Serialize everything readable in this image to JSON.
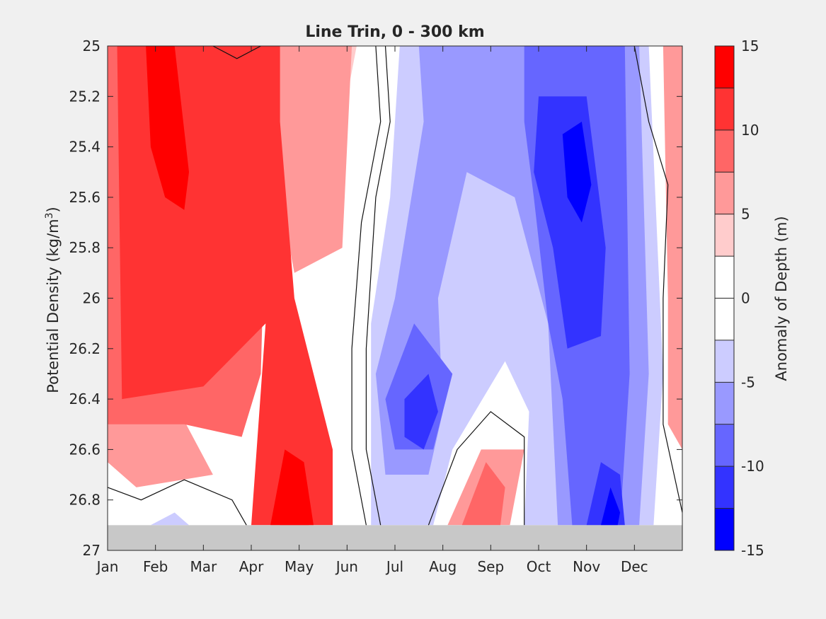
{
  "chart_data": {
    "type": "heatmap",
    "title": "Line Trin, 0 - 300 km",
    "xlabel": "",
    "ylabel": "Potential Density (kg/m",
    "ylabel_superscript": "3",
    "ylabel_close": ")",
    "x_tick_labels": [
      "Jan",
      "Feb",
      "Mar",
      "Apr",
      "May",
      "Jun",
      "Jul",
      "Aug",
      "Sep",
      "Oct",
      "Nov",
      "Dec"
    ],
    "y_tick_labels": [
      "25",
      "25.2",
      "25.4",
      "25.6",
      "25.8",
      "26",
      "26.2",
      "26.4",
      "26.6",
      "26.8",
      "27"
    ],
    "ylim": [
      25,
      27
    ],
    "y_reversed": true,
    "no_data_below": 26.9,
    "no_data_color": "#c8c8c8",
    "colorbar": {
      "label": "Anomaly of Depth (m)",
      "range": [
        -15,
        15
      ],
      "levels": [
        -15,
        -12.5,
        -10,
        -7.5,
        -5,
        -2.5,
        0,
        2.5,
        5,
        7.5,
        10,
        12.5,
        15
      ],
      "colors": [
        "#0000ff",
        "#3333ff",
        "#6666ff",
        "#9999ff",
        "#ccccff",
        "#ffffff",
        "#ffffff",
        "#ffcccc",
        "#ff9999",
        "#ff6666",
        "#ff3333",
        "#ff0000"
      ],
      "tick_labels": [
        "15",
        "10",
        "5",
        "0",
        "-5",
        "-10",
        "-15"
      ]
    },
    "regions": [
      {
        "level": 7.5,
        "polygon": [
          [
            0,
            25
          ],
          [
            3.5,
            25
          ],
          [
            3.3,
            25.6
          ],
          [
            3.2,
            26.3
          ],
          [
            2.8,
            26.55
          ],
          [
            1.6,
            26.5
          ],
          [
            0,
            26.5
          ]
        ]
      },
      {
        "level": 10,
        "polygon": [
          [
            0.2,
            25
          ],
          [
            3.6,
            25
          ],
          [
            3.6,
            25.3
          ],
          [
            3.9,
            26.0
          ],
          [
            4.7,
            26.6
          ],
          [
            4.7,
            26.9
          ],
          [
            3.0,
            26.9
          ],
          [
            3.3,
            26.1
          ],
          [
            2.0,
            26.35
          ],
          [
            0.3,
            26.4
          ]
        ]
      },
      {
        "level": 12.5,
        "polygon": [
          [
            0.8,
            25
          ],
          [
            1.4,
            25
          ],
          [
            1.7,
            25.5
          ],
          [
            1.6,
            25.65
          ],
          [
            1.2,
            25.6
          ],
          [
            0.9,
            25.4
          ]
        ]
      },
      {
        "level": 12.5,
        "polygon": [
          [
            3.4,
            26.9
          ],
          [
            3.7,
            26.6
          ],
          [
            4.1,
            26.65
          ],
          [
            4.3,
            26.9
          ]
        ]
      },
      {
        "level": 15,
        "polygon": [
          [
            3.6,
            26.9
          ],
          [
            3.85,
            26.7
          ],
          [
            4.1,
            26.8
          ],
          [
            4.2,
            26.9
          ]
        ]
      },
      {
        "level": 5,
        "polygon": [
          [
            3.5,
            25
          ],
          [
            5.1,
            25
          ],
          [
            4.9,
            25.8
          ],
          [
            3.9,
            25.9
          ],
          [
            3.5,
            25.5
          ]
        ]
      },
      {
        "level": 2.5,
        "polygon": [
          [
            4.5,
            25
          ],
          [
            5.2,
            25
          ],
          [
            4.8,
            25.4
          ],
          [
            4.55,
            25.5
          ]
        ]
      },
      {
        "level": 5,
        "polygon": [
          [
            0,
            26.5
          ],
          [
            1.5,
            26.45
          ],
          [
            2.2,
            26.7
          ],
          [
            0.6,
            26.75
          ],
          [
            0,
            26.65
          ]
        ]
      },
      {
        "level": 7.5,
        "polygon": [
          [
            7.4,
            26.9
          ],
          [
            7.9,
            26.65
          ],
          [
            8.3,
            26.75
          ],
          [
            8.2,
            26.9
          ]
        ]
      },
      {
        "level": 5,
        "polygon": [
          [
            7.1,
            26.9
          ],
          [
            7.8,
            26.6
          ],
          [
            8.7,
            26.6
          ],
          [
            8.4,
            26.9
          ]
        ]
      },
      {
        "level": 5,
        "polygon": [
          [
            11.6,
            25
          ],
          [
            12,
            25
          ],
          [
            12,
            26.6
          ],
          [
            11.7,
            26.5
          ],
          [
            11.7,
            26.0
          ]
        ]
      },
      {
        "level": -5,
        "polygon": [
          [
            6.1,
            25
          ],
          [
            11.3,
            25
          ],
          [
            11.6,
            26.3
          ],
          [
            11.4,
            26.9
          ],
          [
            8.7,
            26.9
          ],
          [
            8.8,
            26.45
          ],
          [
            8.3,
            26.25
          ],
          [
            7.2,
            26.6
          ],
          [
            6.8,
            26.9
          ],
          [
            5.5,
            26.9
          ],
          [
            5.5,
            26.1
          ],
          [
            5.9,
            25.6
          ]
        ]
      },
      {
        "level": -7.5,
        "polygon": [
          [
            6.5,
            25
          ],
          [
            11.1,
            25
          ],
          [
            11.3,
            26.3
          ],
          [
            11.1,
            26.9
          ],
          [
            9.4,
            26.9
          ],
          [
            9.2,
            26.1
          ],
          [
            8.5,
            25.6
          ],
          [
            7.5,
            25.5
          ],
          [
            6.9,
            26.0
          ],
          [
            7.0,
            26.45
          ],
          [
            6.7,
            26.7
          ],
          [
            5.8,
            26.7
          ],
          [
            5.6,
            26.3
          ],
          [
            6.0,
            26.0
          ],
          [
            6.6,
            25.3
          ]
        ]
      },
      {
        "level": -10,
        "polygon": [
          [
            8.7,
            25
          ],
          [
            10.8,
            25
          ],
          [
            10.9,
            26.3
          ],
          [
            10.7,
            26.9
          ],
          [
            9.7,
            26.9
          ],
          [
            9.5,
            26.4
          ],
          [
            9.2,
            26.1
          ],
          [
            8.9,
            25.6
          ],
          [
            8.7,
            25.3
          ]
        ]
      },
      {
        "level": -10,
        "polygon": [
          [
            5.8,
            26.4
          ],
          [
            6.4,
            26.1
          ],
          [
            7.2,
            26.3
          ],
          [
            6.8,
            26.6
          ],
          [
            6.0,
            26.6
          ]
        ]
      },
      {
        "level": -12.5,
        "polygon": [
          [
            9.0,
            25.2
          ],
          [
            10.0,
            25.2
          ],
          [
            10.4,
            25.8
          ],
          [
            10.3,
            26.15
          ],
          [
            9.6,
            26.2
          ],
          [
            9.3,
            25.8
          ],
          [
            8.9,
            25.5
          ]
        ]
      },
      {
        "level": -12.5,
        "polygon": [
          [
            10.0,
            26.9
          ],
          [
            10.3,
            26.65
          ],
          [
            10.7,
            26.7
          ],
          [
            10.8,
            26.9
          ]
        ]
      },
      {
        "level": -12.5,
        "polygon": [
          [
            6.2,
            26.4
          ],
          [
            6.7,
            26.3
          ],
          [
            6.9,
            26.45
          ],
          [
            6.6,
            26.6
          ],
          [
            6.2,
            26.55
          ]
        ]
      },
      {
        "level": -15,
        "polygon": [
          [
            9.5,
            25.35
          ],
          [
            9.9,
            25.3
          ],
          [
            10.1,
            25.55
          ],
          [
            9.9,
            25.7
          ],
          [
            9.6,
            25.6
          ]
        ]
      },
      {
        "level": -15,
        "polygon": [
          [
            10.3,
            26.9
          ],
          [
            10.5,
            26.75
          ],
          [
            10.7,
            26.85
          ],
          [
            10.65,
            26.9
          ]
        ]
      },
      {
        "level": -5,
        "polygon": [
          [
            0.9,
            26.9
          ],
          [
            1.4,
            26.85
          ],
          [
            1.7,
            26.9
          ]
        ]
      }
    ],
    "contour_lines": [
      [
        [
          2.2,
          25
        ],
        [
          2.7,
          25.05
        ],
        [
          3.2,
          25
        ]
      ],
      [
        [
          0,
          26.75
        ],
        [
          0.7,
          26.8
        ],
        [
          1.6,
          26.72
        ],
        [
          2.6,
          26.8
        ],
        [
          2.9,
          26.9
        ]
      ],
      [
        [
          5.6,
          25
        ],
        [
          5.7,
          25.3
        ],
        [
          5.3,
          25.7
        ],
        [
          5.1,
          26.2
        ],
        [
          5.1,
          26.6
        ],
        [
          5.4,
          26.9
        ]
      ],
      [
        [
          5.8,
          25
        ],
        [
          5.9,
          25.3
        ],
        [
          5.6,
          25.6
        ],
        [
          5.4,
          26.2
        ],
        [
          5.4,
          26.6
        ],
        [
          5.7,
          26.9
        ]
      ],
      [
        [
          6.7,
          26.9
        ],
        [
          7.3,
          26.6
        ],
        [
          8.0,
          26.45
        ],
        [
          8.7,
          26.55
        ],
        [
          8.7,
          26.9
        ]
      ],
      [
        [
          11.0,
          25
        ],
        [
          11.3,
          25.3
        ],
        [
          11.7,
          25.55
        ],
        [
          11.6,
          26.0
        ],
        [
          11.6,
          26.5
        ],
        [
          12,
          26.85
        ]
      ]
    ]
  }
}
